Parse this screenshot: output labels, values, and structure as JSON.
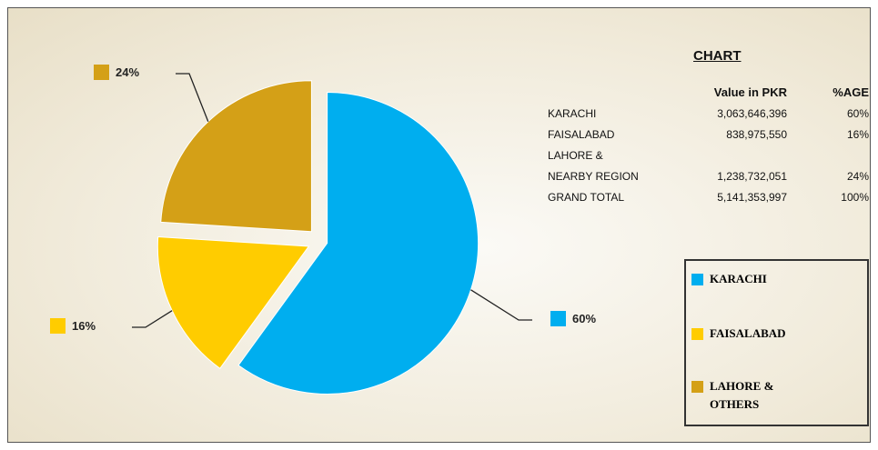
{
  "chart_data": {
    "type": "pie",
    "categories": [
      "KARACHI",
      "FAISALABAD",
      "LAHORE & OTHERS"
    ],
    "values": [
      60,
      16,
      24
    ],
    "value_labels": [
      "60%",
      "16%",
      "24%"
    ],
    "colors": [
      "#00aeef",
      "#ffcc00",
      "#d4a017"
    ],
    "legend": "right"
  },
  "table": {
    "title": "CHART",
    "headers": [
      "Value in PKR",
      "%AGE"
    ],
    "rows": [
      {
        "label": [
          "KARACHI"
        ],
        "value": "3,063,646,396",
        "pct": "60%"
      },
      {
        "label": [
          "FAISALABAD"
        ],
        "value": "838,975,550",
        "pct": "16%"
      },
      {
        "label": [
          "LAHORE &",
          "NEARBY REGION"
        ],
        "value": "1,238,732,051",
        "pct": "24%"
      },
      {
        "label": [
          "GRAND TOTAL"
        ],
        "value": "5,141,353,997",
        "pct": "100%"
      }
    ]
  }
}
